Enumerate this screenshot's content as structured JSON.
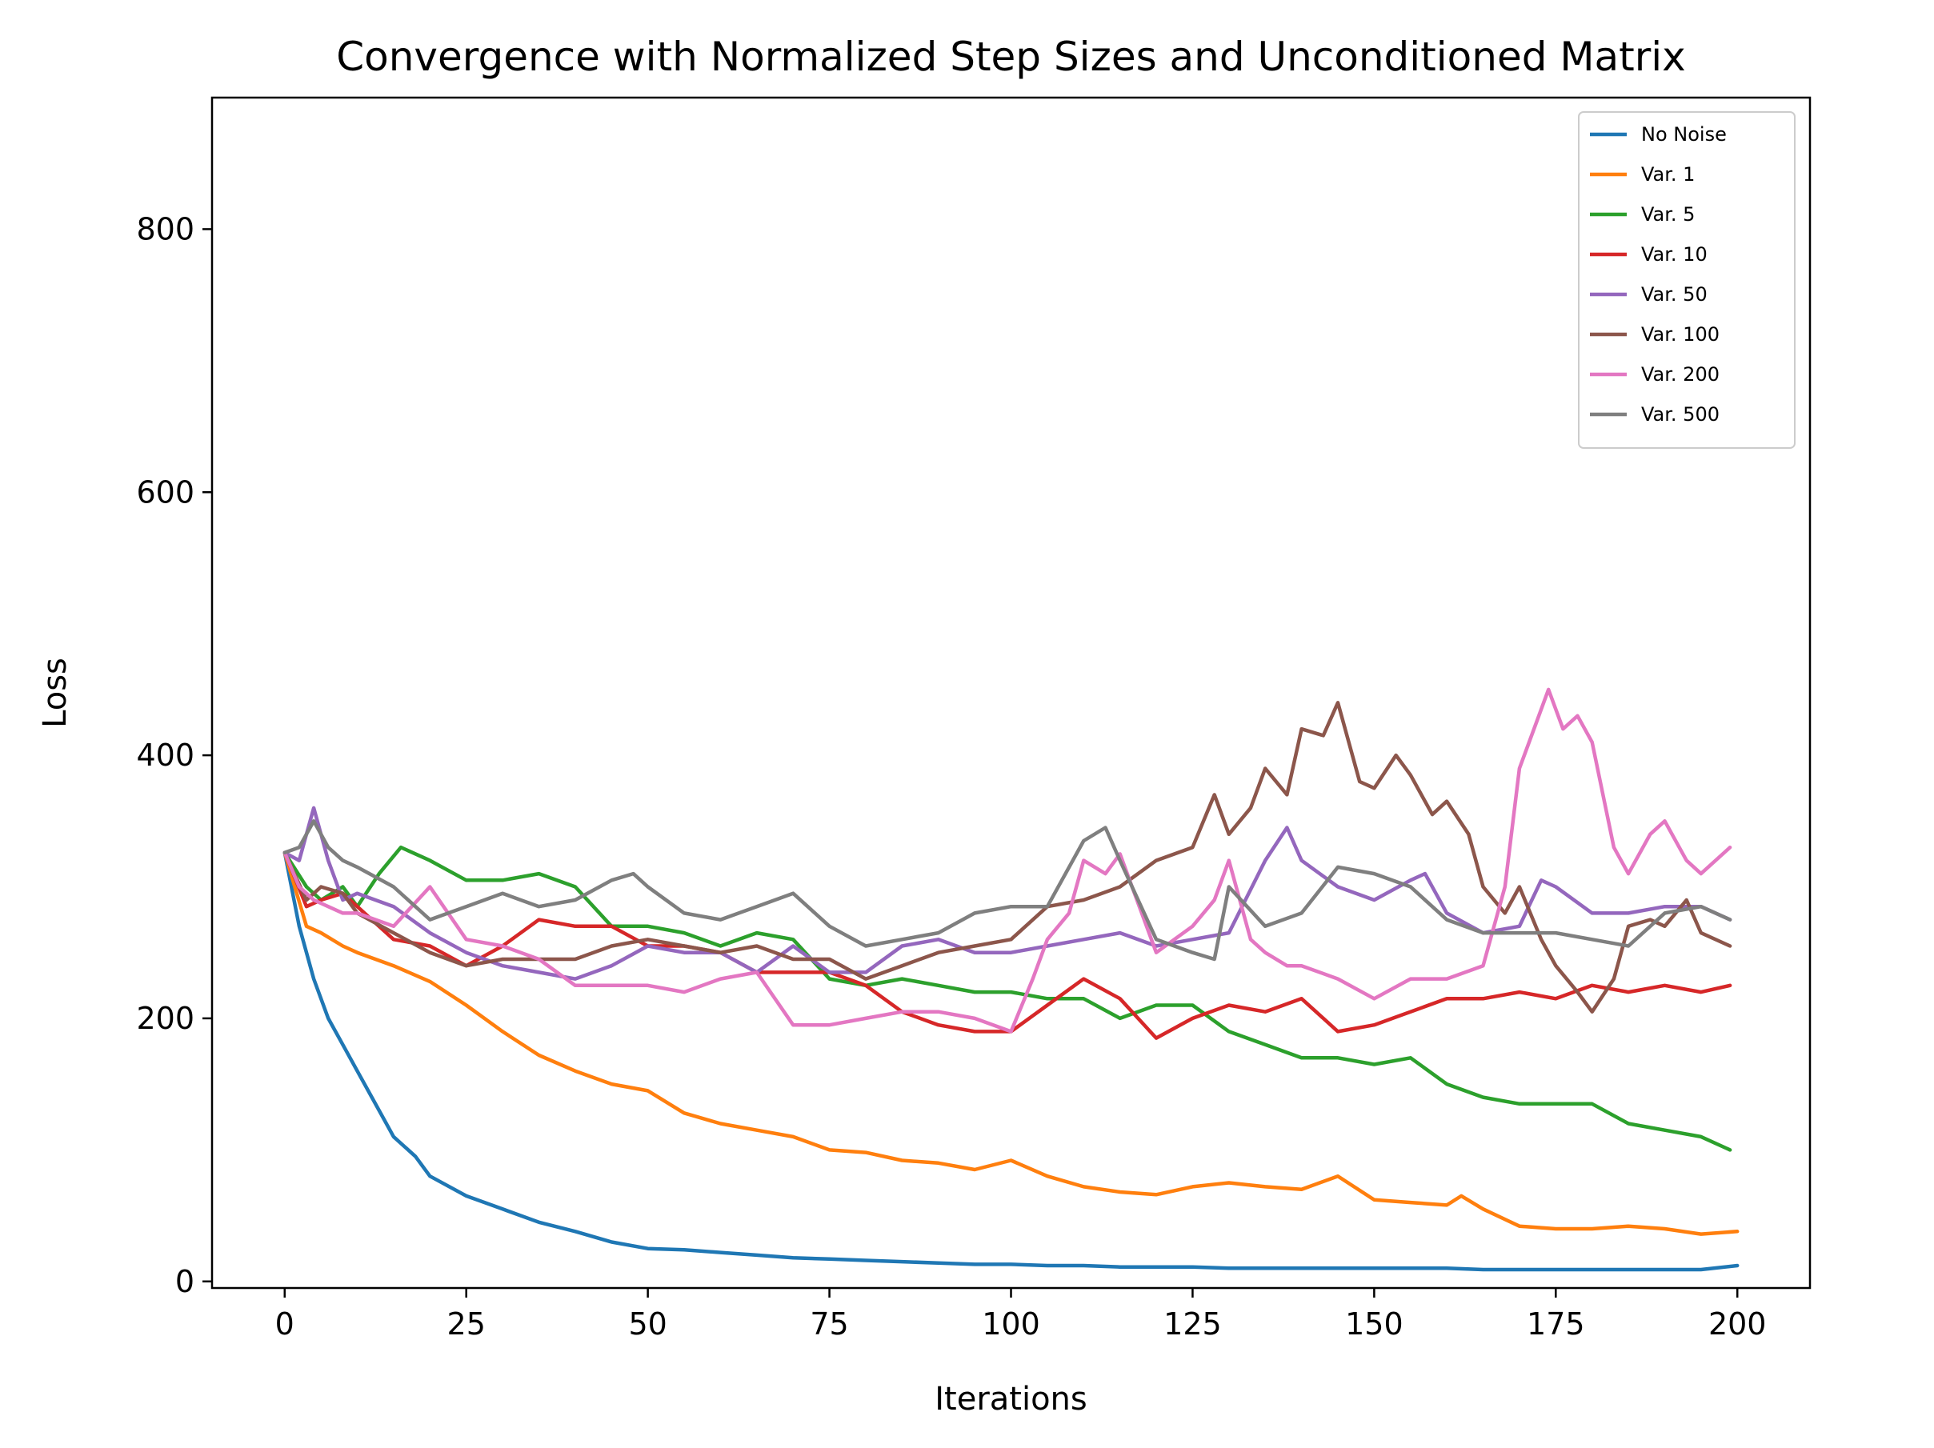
{
  "chart_data": {
    "type": "line",
    "title": "Convergence with Normalized Step Sizes and Unconditioned Matrix",
    "xlabel": "Iterations",
    "ylabel": "Loss",
    "xlim": [
      -10,
      210
    ],
    "ylim": [
      -5,
      900
    ],
    "xticks": [
      0,
      25,
      50,
      75,
      100,
      125,
      150,
      175,
      200
    ],
    "yticks": [
      0,
      200,
      400,
      600,
      800
    ],
    "grid": false,
    "legend_position": "top-right",
    "series": [
      {
        "name": "No Noise",
        "color": "#1f77b4",
        "x": [
          0,
          2,
          4,
          6,
          8,
          10,
          12,
          15,
          18,
          20,
          25,
          30,
          35,
          40,
          45,
          50,
          55,
          60,
          65,
          70,
          75,
          80,
          85,
          90,
          95,
          100,
          105,
          110,
          115,
          120,
          125,
          130,
          135,
          140,
          145,
          150,
          155,
          160,
          165,
          170,
          175,
          180,
          185,
          190,
          195,
          200
        ],
        "y": [
          326,
          270,
          230,
          200,
          180,
          160,
          140,
          110,
          95,
          80,
          65,
          55,
          45,
          38,
          30,
          25,
          24,
          22,
          20,
          18,
          17,
          16,
          15,
          14,
          13,
          13,
          12,
          12,
          11,
          11,
          11,
          10,
          10,
          10,
          10,
          10,
          10,
          10,
          9,
          9,
          9,
          9,
          9,
          9,
          9,
          12
        ]
      },
      {
        "name": "Var. 1",
        "color": "#ff7f0e",
        "x": [
          0,
          3,
          5,
          8,
          10,
          15,
          20,
          25,
          30,
          35,
          40,
          45,
          50,
          55,
          60,
          65,
          70,
          75,
          80,
          85,
          90,
          95,
          100,
          105,
          110,
          115,
          120,
          125,
          130,
          135,
          140,
          145,
          150,
          155,
          160,
          162,
          165,
          170,
          175,
          180,
          185,
          190,
          195,
          200
        ],
        "y": [
          326,
          270,
          265,
          255,
          250,
          240,
          228,
          210,
          190,
          172,
          160,
          150,
          145,
          128,
          120,
          115,
          110,
          100,
          98,
          92,
          90,
          85,
          92,
          80,
          72,
          68,
          66,
          72,
          75,
          72,
          70,
          80,
          62,
          60,
          58,
          65,
          55,
          42,
          40,
          40,
          42,
          40,
          36,
          38
        ]
      },
      {
        "name": "Var. 5",
        "color": "#2ca02c",
        "x": [
          0,
          3,
          5,
          8,
          10,
          13,
          16,
          20,
          25,
          30,
          35,
          40,
          45,
          50,
          55,
          60,
          65,
          70,
          75,
          80,
          85,
          90,
          95,
          100,
          105,
          110,
          115,
          120,
          125,
          130,
          135,
          140,
          145,
          150,
          155,
          160,
          165,
          170,
          175,
          180,
          185,
          190,
          195,
          199
        ],
        "y": [
          326,
          300,
          290,
          300,
          285,
          310,
          330,
          320,
          305,
          305,
          310,
          300,
          270,
          270,
          265,
          255,
          265,
          260,
          230,
          225,
          230,
          225,
          220,
          220,
          215,
          215,
          200,
          210,
          210,
          190,
          180,
          170,
          170,
          165,
          170,
          150,
          140,
          135,
          135,
          135,
          120,
          115,
          110,
          100
        ]
      },
      {
        "name": "Var. 10",
        "color": "#d62728",
        "x": [
          0,
          3,
          5,
          8,
          10,
          15,
          20,
          25,
          30,
          35,
          40,
          45,
          50,
          55,
          60,
          65,
          70,
          75,
          80,
          85,
          90,
          95,
          100,
          105,
          110,
          115,
          120,
          125,
          130,
          135,
          140,
          145,
          150,
          155,
          160,
          165,
          170,
          175,
          180,
          185,
          190,
          195,
          199
        ],
        "y": [
          326,
          285,
          290,
          295,
          285,
          260,
          255,
          240,
          255,
          275,
          270,
          270,
          255,
          255,
          250,
          235,
          235,
          235,
          225,
          205,
          195,
          190,
          190,
          210,
          230,
          215,
          185,
          200,
          210,
          205,
          215,
          190,
          195,
          205,
          215,
          215,
          220,
          215,
          225,
          220,
          225,
          220,
          225
        ]
      },
      {
        "name": "Var. 50",
        "color": "#9467bd",
        "x": [
          0,
          2,
          4,
          6,
          8,
          10,
          15,
          20,
          25,
          30,
          35,
          40,
          45,
          50,
          55,
          60,
          65,
          70,
          75,
          80,
          85,
          90,
          95,
          100,
          105,
          110,
          115,
          120,
          125,
          130,
          135,
          138,
          140,
          145,
          150,
          155,
          157,
          160,
          165,
          170,
          173,
          175,
          180,
          185,
          190,
          195,
          199
        ],
        "y": [
          326,
          320,
          360,
          320,
          290,
          295,
          285,
          265,
          250,
          240,
          235,
          230,
          240,
          255,
          250,
          250,
          235,
          255,
          235,
          235,
          255,
          260,
          250,
          250,
          255,
          260,
          265,
          255,
          260,
          265,
          320,
          345,
          320,
          300,
          290,
          305,
          310,
          280,
          265,
          270,
          305,
          300,
          280,
          280,
          285,
          285,
          275
        ]
      },
      {
        "name": "Var. 100",
        "color": "#8c564b",
        "x": [
          0,
          3,
          5,
          8,
          10,
          15,
          20,
          25,
          30,
          35,
          40,
          45,
          50,
          55,
          60,
          65,
          70,
          75,
          80,
          85,
          90,
          95,
          100,
          105,
          110,
          115,
          120,
          125,
          128,
          130,
          133,
          135,
          138,
          140,
          143,
          145,
          148,
          150,
          153,
          155,
          158,
          160,
          163,
          165,
          168,
          170,
          173,
          175,
          178,
          180,
          183,
          185,
          188,
          190,
          193,
          195,
          199
        ],
        "y": [
          326,
          290,
          300,
          295,
          280,
          265,
          250,
          240,
          245,
          245,
          245,
          255,
          260,
          255,
          250,
          255,
          245,
          245,
          230,
          240,
          250,
          255,
          260,
          285,
          290,
          300,
          320,
          330,
          370,
          340,
          360,
          390,
          370,
          420,
          415,
          440,
          380,
          375,
          400,
          385,
          355,
          365,
          340,
          300,
          280,
          300,
          260,
          240,
          220,
          205,
          230,
          270,
          275,
          270,
          290,
          265,
          255
        ]
      },
      {
        "name": "Var. 200",
        "color": "#e377c2",
        "x": [
          0,
          2,
          4,
          6,
          8,
          10,
          15,
          20,
          25,
          30,
          35,
          40,
          45,
          50,
          55,
          60,
          65,
          70,
          75,
          80,
          85,
          90,
          95,
          100,
          103,
          105,
          108,
          110,
          113,
          115,
          120,
          125,
          128,
          130,
          133,
          135,
          138,
          140,
          145,
          150,
          155,
          160,
          165,
          168,
          170,
          172,
          174,
          176,
          178,
          180,
          183,
          185,
          188,
          190,
          193,
          195,
          199
        ],
        "y": [
          326,
          300,
          290,
          285,
          280,
          280,
          270,
          300,
          260,
          255,
          245,
          225,
          225,
          225,
          220,
          230,
          235,
          195,
          195,
          200,
          205,
          205,
          200,
          190,
          230,
          260,
          280,
          320,
          310,
          325,
          250,
          270,
          290,
          320,
          260,
          250,
          240,
          240,
          230,
          215,
          230,
          230,
          240,
          300,
          390,
          420,
          450,
          420,
          430,
          410,
          330,
          310,
          340,
          350,
          320,
          310,
          330
        ]
      },
      {
        "name": "Var. 500",
        "color": "#7f7f7f",
        "x": [
          0,
          2,
          4,
          6,
          8,
          10,
          15,
          20,
          25,
          30,
          35,
          40,
          45,
          48,
          50,
          55,
          60,
          65,
          70,
          75,
          80,
          85,
          90,
          95,
          100,
          105,
          110,
          113,
          115,
          120,
          125,
          128,
          130,
          135,
          140,
          145,
          150,
          155,
          160,
          165,
          170,
          175,
          180,
          185,
          190,
          195,
          199
        ],
        "y": [
          326,
          330,
          350,
          330,
          320,
          315,
          300,
          275,
          285,
          295,
          285,
          290,
          305,
          310,
          300,
          280,
          275,
          285,
          295,
          270,
          255,
          260,
          265,
          280,
          285,
          285,
          335,
          345,
          320,
          260,
          250,
          245,
          300,
          270,
          280,
          315,
          310,
          300,
          275,
          265,
          265,
          265,
          260,
          255,
          280,
          285,
          275
        ]
      }
    ]
  }
}
